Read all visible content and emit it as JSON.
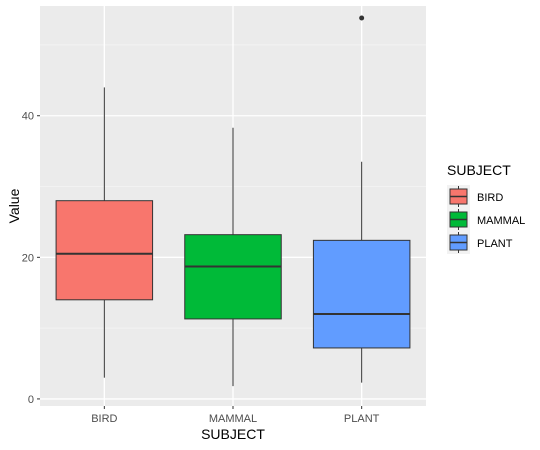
{
  "chart_data": {
    "type": "boxplot",
    "xlabel": "SUBJECT",
    "ylabel": "Value",
    "ylim": [
      -1,
      55.5
    ],
    "y_ticks": [
      0,
      20,
      40
    ],
    "categories": [
      "BIRD",
      "MAMMAL",
      "PLANT"
    ],
    "boxes": [
      {
        "category": "BIRD",
        "min": 3,
        "q1": 14,
        "median": 20.5,
        "q3": 28,
        "max": 44,
        "outliers": [],
        "color": "#F8766D"
      },
      {
        "category": "MAMMAL",
        "min": 1.8,
        "q1": 11.3,
        "median": 18.7,
        "q3": 23.2,
        "max": 38.3,
        "outliers": [],
        "color": "#00BA38"
      },
      {
        "category": "PLANT",
        "min": 2.3,
        "q1": 7.2,
        "median": 12,
        "q3": 22.4,
        "max": 33.5,
        "outliers": [
          53.8
        ],
        "color": "#619CFF"
      }
    ],
    "legend": {
      "title": "SUBJECT",
      "position": "right",
      "entries": [
        "BIRD",
        "MAMMAL",
        "PLANT"
      ]
    },
    "grid": true,
    "panel_background": "#EBEBEB"
  }
}
